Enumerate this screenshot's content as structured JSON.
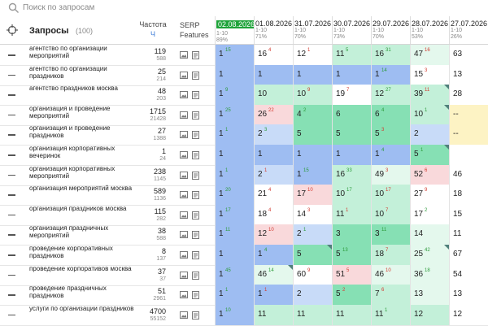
{
  "search": {
    "placeholder": "Поиск по запросам"
  },
  "header": {
    "queries_label": "Запросы",
    "queries_count": "(100)",
    "freq_label": "Частота",
    "freq_sub": "Ч",
    "serp_line1": "SERP",
    "serp_line2": "Features"
  },
  "dates": [
    {
      "date": "02.08.2026",
      "range": "1-10",
      "pct": "89%",
      "current": true
    },
    {
      "date": "01.08.2026",
      "range": "1-10",
      "pct": "71%",
      "current": false
    },
    {
      "date": "31.07.2026",
      "range": "1-10",
      "pct": "70%",
      "current": false
    },
    {
      "date": "30.07.2026",
      "range": "1-10",
      "pct": "73%",
      "current": false
    },
    {
      "date": "29.07.2026",
      "range": "1-10",
      "pct": "70%",
      "current": false
    },
    {
      "date": "28.07.2026",
      "range": "1-10",
      "pct": "53%",
      "current": false
    },
    {
      "date": "27.07.2026",
      "range": "1-10",
      "pct": "26%",
      "current": false
    }
  ],
  "colors": {
    "top": "#9ebdf2",
    "top_light": "#c8dbf8",
    "green_strong": "#86e0b4",
    "green": "#c3f0d9",
    "green_light": "#e4f8ed",
    "red": "#f9d9db",
    "yellow": "#fdf3c4",
    "white": "#ffffff"
  },
  "rows": [
    {
      "query": "агентство по организации мероприятий",
      "freq": "119",
      "freq_sub": "588",
      "cells": [
        [
          "1",
          "15",
          "up",
          "top",
          false
        ],
        [
          "16",
          "4",
          "dn",
          "white",
          false
        ],
        [
          "12",
          "1",
          "dn",
          "white",
          false
        ],
        [
          "11",
          "5",
          "up",
          "green",
          false
        ],
        [
          "16",
          "31",
          "up",
          "green",
          false
        ],
        [
          "47",
          "16",
          "dn",
          "green_light",
          false
        ],
        [
          "63",
          "",
          "",
          "white",
          false
        ]
      ]
    },
    {
      "query": "агентство по организации праздников",
      "freq": "25",
      "freq_sub": "214",
      "cells": [
        [
          "1",
          "",
          "",
          "top",
          false
        ],
        [
          "1",
          "",
          "",
          "top",
          false
        ],
        [
          "1",
          "",
          "",
          "top",
          false
        ],
        [
          "1",
          "",
          "",
          "top",
          false
        ],
        [
          "1",
          "14",
          "up",
          "top",
          false
        ],
        [
          "15",
          "3",
          "dn",
          "white",
          false
        ],
        [
          "13",
          "",
          "",
          "white",
          false
        ]
      ]
    },
    {
      "query": "агентство праздников москва",
      "freq": "48",
      "freq_sub": "203",
      "cells": [
        [
          "1",
          "9",
          "up",
          "top",
          false
        ],
        [
          "10",
          "",
          "",
          "green",
          false
        ],
        [
          "10",
          "9",
          "dn",
          "green",
          false
        ],
        [
          "19",
          "7",
          "dn",
          "white",
          false
        ],
        [
          "12",
          "27",
          "up",
          "green",
          false
        ],
        [
          "39",
          "11",
          "dn",
          "green",
          true
        ],
        [
          "28",
          "",
          "",
          "white",
          false
        ]
      ]
    },
    {
      "query": "организация и проведение мероприятий",
      "freq": "1715",
      "freq_sub": "21428",
      "cells": [
        [
          "1",
          "25",
          "up",
          "top",
          false
        ],
        [
          "26",
          "22",
          "dn",
          "red",
          false
        ],
        [
          "4",
          "2",
          "up",
          "green_strong",
          false
        ],
        [
          "6",
          "",
          "",
          "green_strong",
          false
        ],
        [
          "6",
          "4",
          "up",
          "green_strong",
          false
        ],
        [
          "10",
          "1",
          "up",
          "green",
          true
        ],
        [
          "--",
          "",
          "",
          "yellow",
          false
        ]
      ]
    },
    {
      "query": "организация и проведение праздников",
      "freq": "27",
      "freq_sub": "1388",
      "cells": [
        [
          "1",
          "1",
          "up",
          "top",
          false
        ],
        [
          "2",
          "3",
          "up",
          "top_light",
          false
        ],
        [
          "5",
          "",
          "",
          "green_strong",
          false
        ],
        [
          "5",
          "",
          "",
          "green_strong",
          false
        ],
        [
          "5",
          "3",
          "dn",
          "green_strong",
          false
        ],
        [
          "2",
          "",
          "",
          "top_light",
          false
        ],
        [
          "--",
          "",
          "",
          "yellow",
          false
        ]
      ]
    },
    {
      "query": "организация корпоративных вечеринок",
      "freq": "1",
      "freq_sub": "24",
      "cells": [
        [
          "1",
          "",
          "",
          "top",
          false
        ],
        [
          "1",
          "",
          "",
          "top",
          false
        ],
        [
          "1",
          "",
          "",
          "top",
          false
        ],
        [
          "1",
          "",
          "",
          "top",
          false
        ],
        [
          "1",
          "4",
          "up",
          "top",
          false
        ],
        [
          "5",
          "1",
          "up",
          "green_strong",
          true
        ],
        [
          "",
          "",
          "",
          "white",
          false
        ]
      ]
    },
    {
      "query": "организация корпоративных мероприятий",
      "freq": "238",
      "freq_sub": "1145",
      "cells": [
        [
          "1",
          "1",
          "up",
          "top",
          false
        ],
        [
          "2",
          "1",
          "dn",
          "top_light",
          false
        ],
        [
          "1",
          "15",
          "up",
          "top",
          false
        ],
        [
          "16",
          "33",
          "up",
          "green",
          false
        ],
        [
          "49",
          "3",
          "dn",
          "green_light",
          false
        ],
        [
          "52",
          "6",
          "dn",
          "red",
          false
        ],
        [
          "46",
          "",
          "",
          "white",
          false
        ]
      ]
    },
    {
      "query": "организация мероприятий москва",
      "freq": "589",
      "freq_sub": "1136",
      "cells": [
        [
          "1",
          "20",
          "up",
          "top",
          false
        ],
        [
          "21",
          "4",
          "dn",
          "white",
          false
        ],
        [
          "17",
          "10",
          "dn",
          "red",
          false
        ],
        [
          "10",
          "17",
          "up",
          "green",
          false
        ],
        [
          "10",
          "17",
          "dn",
          "green",
          false
        ],
        [
          "27",
          "9",
          "dn",
          "white",
          false
        ],
        [
          "18",
          "",
          "",
          "white",
          false
        ]
      ]
    },
    {
      "query": "организация праздников москва",
      "freq": "115",
      "freq_sub": "282",
      "cells": [
        [
          "1",
          "17",
          "up",
          "top",
          false
        ],
        [
          "18",
          "4",
          "dn",
          "white",
          false
        ],
        [
          "14",
          "3",
          "dn",
          "white",
          false
        ],
        [
          "11",
          "1",
          "dn",
          "green",
          false
        ],
        [
          "10",
          "7",
          "dn",
          "green",
          false
        ],
        [
          "17",
          "2",
          "up",
          "white",
          false
        ],
        [
          "15",
          "",
          "",
          "white",
          false
        ]
      ]
    },
    {
      "query": "организация праздничных мероприятий",
      "freq": "38",
      "freq_sub": "588",
      "cells": [
        [
          "1",
          "11",
          "up",
          "top",
          false
        ],
        [
          "12",
          "10",
          "dn",
          "red",
          false
        ],
        [
          "2",
          "1",
          "up",
          "top_light",
          false
        ],
        [
          "3",
          "",
          "",
          "green_strong",
          false
        ],
        [
          "3",
          "11",
          "up",
          "green_strong",
          false
        ],
        [
          "14",
          "",
          "",
          "green_light",
          false
        ],
        [
          "11",
          "",
          "",
          "white",
          false
        ]
      ]
    },
    {
      "query": "проведение корпоративных праздников",
      "freq": "8",
      "freq_sub": "137",
      "cells": [
        [
          "1",
          "",
          "",
          "top",
          false
        ],
        [
          "1",
          "4",
          "up",
          "top",
          false
        ],
        [
          "5",
          "",
          "",
          "green_strong",
          true
        ],
        [
          "5",
          "13",
          "up",
          "green_strong",
          false
        ],
        [
          "18",
          "7",
          "dn",
          "green",
          false
        ],
        [
          "25",
          "42",
          "up",
          "green_light",
          true
        ],
        [
          "67",
          "",
          "",
          "white",
          false
        ]
      ]
    },
    {
      "query": "проведение корпоративов москва",
      "freq": "37",
      "freq_sub": "37",
      "cells": [
        [
          "1",
          "45",
          "up",
          "top",
          false
        ],
        [
          "46",
          "14",
          "up",
          "green_light",
          true
        ],
        [
          "60",
          "9",
          "dn",
          "white",
          false
        ],
        [
          "51",
          "5",
          "dn",
          "red",
          false
        ],
        [
          "46",
          "10",
          "dn",
          "green_light",
          false
        ],
        [
          "36",
          "18",
          "up",
          "green_light",
          false
        ],
        [
          "54",
          "",
          "",
          "white",
          false
        ]
      ]
    },
    {
      "query": "проведение праздничных праздников",
      "freq": "51",
      "freq_sub": "2961",
      "cells": [
        [
          "1",
          "1",
          "up",
          "top",
          false
        ],
        [
          "1",
          "1",
          "dn",
          "top",
          false
        ],
        [
          "2",
          "",
          "",
          "top_light",
          false
        ],
        [
          "5",
          "2",
          "dn",
          "green_strong",
          false
        ],
        [
          "7",
          "6",
          "dn",
          "green",
          false
        ],
        [
          "13",
          "",
          "",
          "green_light",
          false
        ],
        [
          "13",
          "",
          "",
          "white",
          false
        ]
      ]
    },
    {
      "query": "услуги по организации праздников",
      "freq": "4700",
      "freq_sub": "55152",
      "cells": [
        [
          "1",
          "10",
          "up",
          "top",
          false
        ],
        [
          "11",
          "",
          "",
          "green",
          false
        ],
        [
          "11",
          "",
          "",
          "green",
          false
        ],
        [
          "11",
          "",
          "",
          "green",
          false
        ],
        [
          "11",
          "1",
          "up",
          "green",
          false
        ],
        [
          "12",
          "",
          "",
          "green",
          false
        ],
        [
          "12",
          "",
          "",
          "white",
          false
        ]
      ]
    }
  ]
}
